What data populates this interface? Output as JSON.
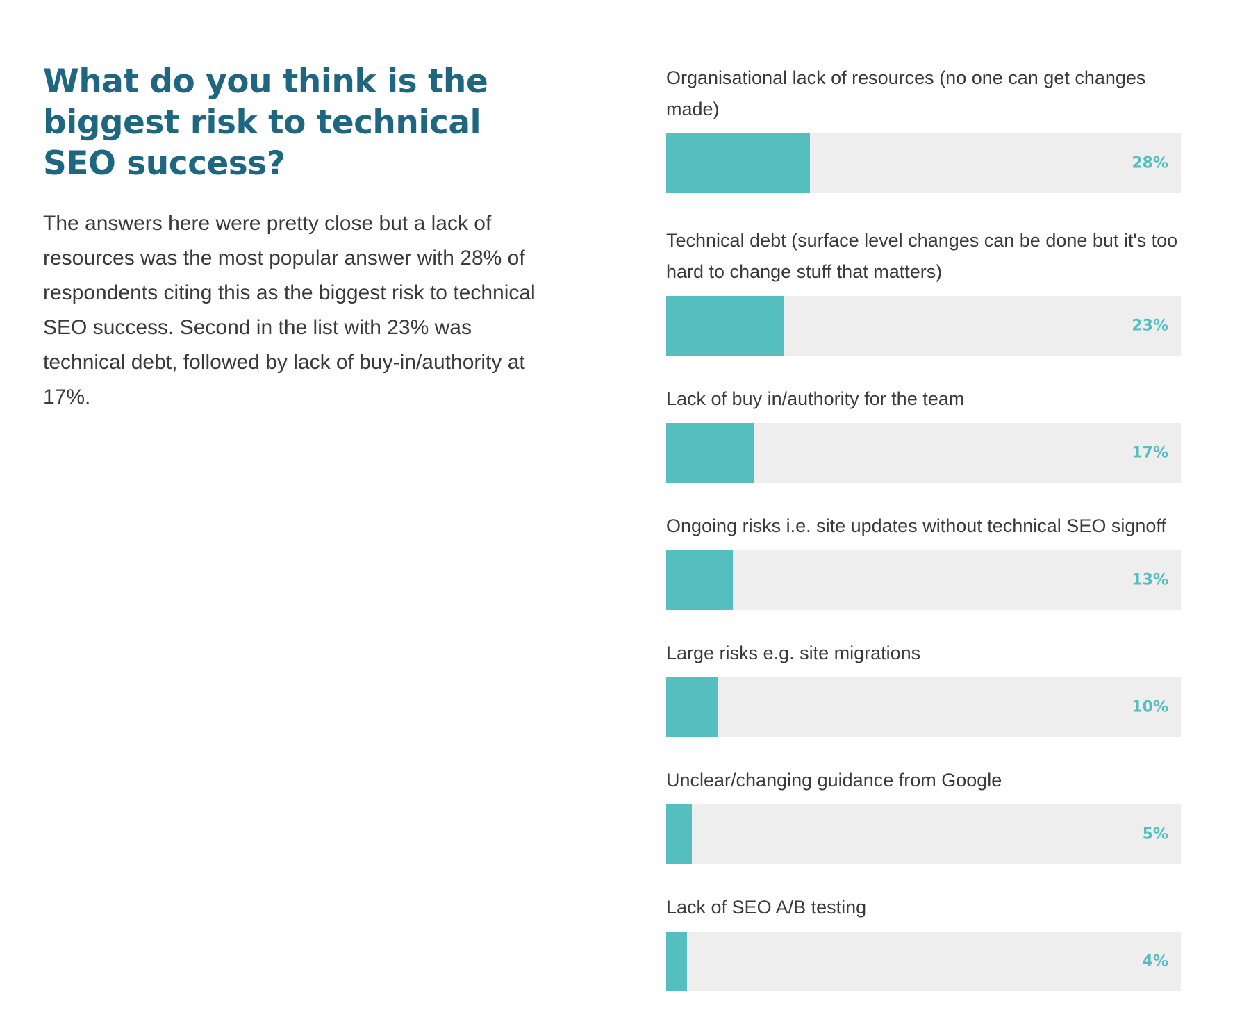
{
  "intro": {
    "title": "What do you think is the biggest risk to technical SEO success?",
    "description": "The answers here were pretty close but a lack of resources was the most popular answer with 28% of respondents citing this as the biggest risk to technical SEO success. Second in the list with 23% was technical debt, followed by lack of buy-in/authority at 17%."
  },
  "colors": {
    "title": "#1f6680",
    "bar_fill": "#55bfbf",
    "bar_track": "#eeeeee",
    "value_text": "#55bfbf",
    "body_text": "#3a3a3a"
  },
  "chart_data": {
    "type": "bar",
    "orientation": "horizontal",
    "xlim": [
      0,
      100
    ],
    "grid": false,
    "categories": [
      "Organisational lack of resources (no one can get changes made)",
      "Technical debt (surface level changes can be done but it's too hard to change stuff that matters)",
      "Lack of buy in/authority for the team",
      "Ongoing risks i.e. site updates without technical SEO signoff",
      "Large risks e.g. site migrations",
      "Unclear/changing guidance from Google",
      "Lack of SEO A/B testing"
    ],
    "values": [
      28,
      23,
      17,
      13,
      10,
      5,
      4
    ],
    "value_labels": [
      "28%",
      "23%",
      "17%",
      "13%",
      "10%",
      "5%",
      "4%"
    ]
  }
}
